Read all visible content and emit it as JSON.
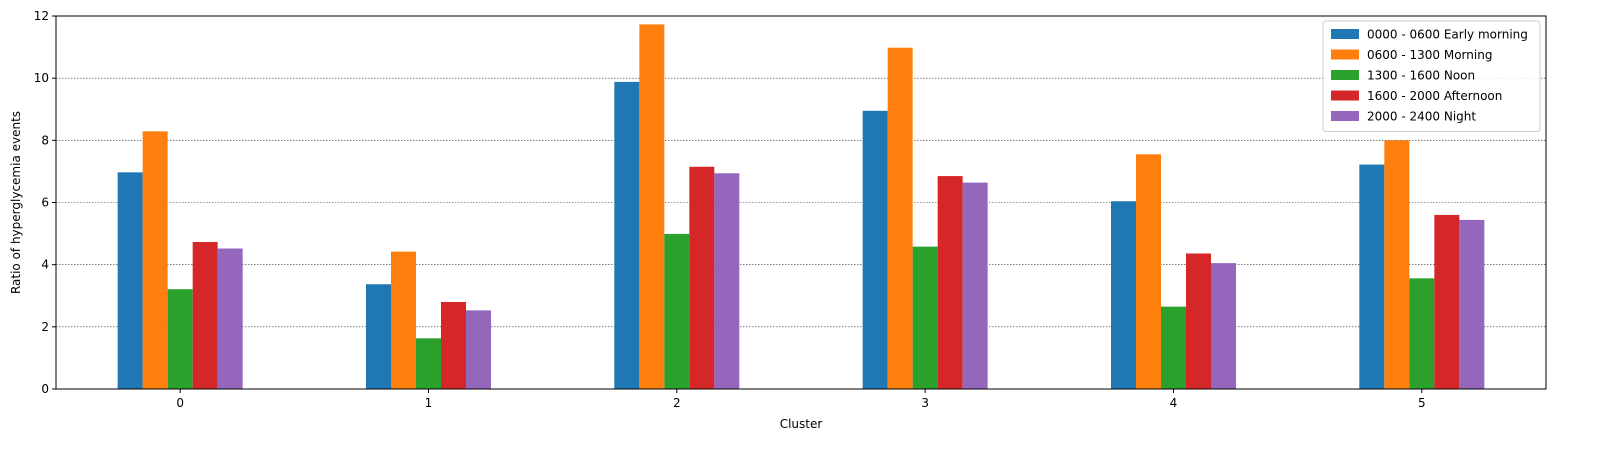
{
  "chart_data": {
    "type": "bar",
    "xlabel": "Cluster",
    "ylabel": "Ratio of hyperglycemia events",
    "categories": [
      "0",
      "1",
      "2",
      "3",
      "4",
      "5"
    ],
    "ylim": [
      0,
      12
    ],
    "yticks": [
      "0",
      "2",
      "4",
      "6",
      "8",
      "10",
      "12"
    ],
    "grid": "horizontal dotted",
    "legend_position": "top-right",
    "series": [
      {
        "name": "0000 - 0600 Early morning",
        "color": "#1f77b4",
        "values": [
          6.97,
          3.37,
          9.88,
          8.95,
          6.04,
          7.22
        ]
      },
      {
        "name": "0600 - 1300 Morning",
        "color": "#ff7f0e",
        "values": [
          8.29,
          4.42,
          11.73,
          10.98,
          7.55,
          8.0
        ]
      },
      {
        "name": "1300 - 1600 Noon",
        "color": "#2ca02c",
        "values": [
          3.21,
          1.63,
          4.99,
          4.58,
          2.65,
          3.56
        ]
      },
      {
        "name": "1600 - 2000 Afternoon",
        "color": "#d62728",
        "values": [
          4.73,
          2.8,
          7.15,
          6.85,
          4.36,
          5.6
        ]
      },
      {
        "name": "2000 - 2400 Night",
        "color": "#9467bd",
        "values": [
          4.52,
          2.53,
          6.94,
          6.64,
          4.05,
          5.44
        ]
      }
    ]
  }
}
